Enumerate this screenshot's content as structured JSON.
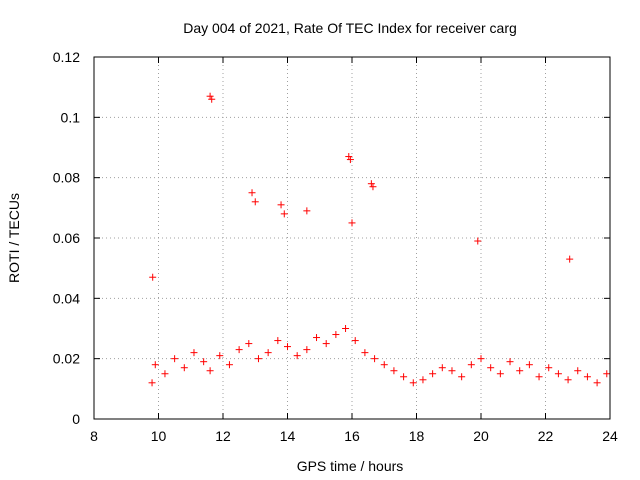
{
  "chart_data": {
    "type": "scatter",
    "title": "Day 004 of 2021, Rate Of TEC Index for receiver carg",
    "xlabel": "GPS time / hours",
    "ylabel": "ROTI / TECUs",
    "xlim": [
      8,
      24
    ],
    "ylim": [
      0,
      0.12
    ],
    "x_ticks": [
      8,
      10,
      12,
      14,
      16,
      18,
      20,
      22,
      24
    ],
    "x_tick_labels": [
      "8",
      "10",
      "12",
      "14",
      "16",
      "18",
      "20",
      "22",
      "24"
    ],
    "y_ticks": [
      0,
      0.02,
      0.04,
      0.06,
      0.08,
      0.1,
      0.12
    ],
    "y_tick_labels": [
      "0",
      "0.02",
      "0.04",
      "0.06",
      "0.08",
      "0.1",
      "0.12"
    ],
    "grid": true,
    "marker": "+",
    "series": [
      {
        "name": "ROTI",
        "color": "#ff0000",
        "x": [
          9.8,
          9.9,
          10.2,
          10.5,
          10.8,
          11.1,
          11.4,
          11.6,
          11.9,
          12.2,
          12.5,
          12.8,
          13.1,
          13.4,
          13.7,
          14.0,
          14.3,
          14.6,
          14.9,
          15.2,
          15.5,
          15.8,
          16.1,
          16.4,
          16.7,
          17.0,
          17.3,
          17.6,
          17.9,
          18.2,
          18.5,
          18.8,
          19.1,
          19.4,
          19.7,
          20.0,
          20.3,
          20.6,
          20.9,
          21.2,
          21.5,
          21.8,
          22.1,
          22.4,
          22.7,
          23.0,
          23.3,
          23.6,
          23.9,
          11.6,
          11.65,
          12.9,
          13.8,
          13.9,
          14.6,
          15.9,
          15.95,
          16.6,
          16.65,
          16.0,
          19.9,
          22.75,
          9.82,
          13.0
        ],
        "y": [
          0.012,
          0.018,
          0.015,
          0.02,
          0.017,
          0.022,
          0.019,
          0.016,
          0.021,
          0.018,
          0.023,
          0.025,
          0.02,
          0.022,
          0.026,
          0.024,
          0.021,
          0.023,
          0.027,
          0.025,
          0.028,
          0.03,
          0.026,
          0.022,
          0.02,
          0.018,
          0.016,
          0.014,
          0.012,
          0.013,
          0.015,
          0.017,
          0.016,
          0.014,
          0.018,
          0.02,
          0.017,
          0.015,
          0.019,
          0.016,
          0.018,
          0.014,
          0.017,
          0.015,
          0.013,
          0.016,
          0.014,
          0.012,
          0.015,
          0.107,
          0.106,
          0.075,
          0.071,
          0.068,
          0.069,
          0.087,
          0.086,
          0.078,
          0.077,
          0.065,
          0.059,
          0.053,
          0.047,
          0.072
        ]
      }
    ]
  }
}
